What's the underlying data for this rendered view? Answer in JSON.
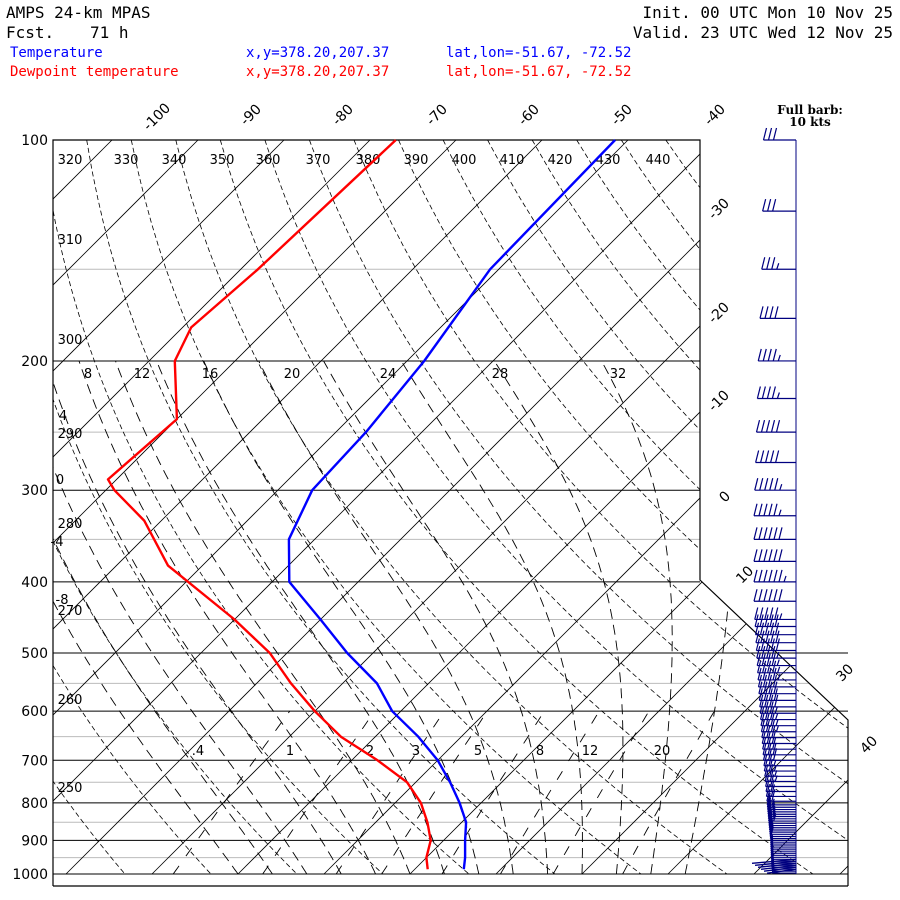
{
  "header": {
    "model": "AMPS 24-km MPAS",
    "fcst_label": "Fcst.",
    "fcst_value": "71 h",
    "init": "Init. 00 UTC Mon 10 Nov 25",
    "valid": "Valid. 23 UTC Wed 12 Nov 25"
  },
  "legend": {
    "temp_label": "Temperature",
    "dew_label": "Dewpoint temperature",
    "temp_xy": "x,y=378.20,207.37",
    "temp_latlon": "lat,lon=-51.67, -72.52",
    "dew_xy": "x,y=378.20,207.37",
    "dew_latlon": "lat,lon=-51.67, -72.52",
    "temp_color": "#0000ff",
    "dew_color": "#ff0000"
  },
  "barb_note": {
    "line1": "Full barb:",
    "line2": "10 kts"
  },
  "chart_data": {
    "type": "line",
    "chart_kind": "skew-T log-P diagram",
    "pressure_levels": [
      100,
      200,
      300,
      400,
      500,
      600,
      700,
      800,
      900,
      1000
    ],
    "pressure_tick_labels": [
      "100",
      "200",
      "300",
      "400",
      "500",
      "600",
      "700",
      "800",
      "900",
      "1000"
    ],
    "isotherm_labels": [
      "-100",
      "-90",
      "-80",
      "-70",
      "-60",
      "-50",
      "-40",
      "-30",
      "-20",
      "-10",
      "0",
      "10",
      "30",
      "40"
    ],
    "theta_labels": [
      "320",
      "330",
      "340",
      "350",
      "360",
      "370",
      "380",
      "390",
      "400",
      "410",
      "420",
      "430",
      "440",
      "310",
      "300",
      "290",
      "280",
      "270",
      "260",
      "250"
    ],
    "mixing_ratio_labels": [
      ".4",
      "1",
      "2",
      "3",
      "5",
      "8",
      "12",
      "20"
    ],
    "theta_e_labels": [
      "8",
      "12",
      "16",
      "20",
      "24",
      "28",
      "32"
    ],
    "lifted_labels": [
      "4",
      "0",
      "-4",
      "-8"
    ],
    "y_scale": "log pressure",
    "series": [
      {
        "name": "Temperature",
        "color": "#0000ff",
        "values": [
          [
            100,
            -61.5
          ],
          [
            150,
            -61
          ],
          [
            200,
            -58
          ],
          [
            250,
            -56.5
          ],
          [
            300,
            -56
          ],
          [
            350,
            -53
          ],
          [
            400,
            -48
          ],
          [
            450,
            -40
          ],
          [
            500,
            -33
          ],
          [
            550,
            -26
          ],
          [
            600,
            -21
          ],
          [
            650,
            -15
          ],
          [
            700,
            -10
          ],
          [
            750,
            -6
          ],
          [
            800,
            -2.5
          ],
          [
            850,
            0.5
          ],
          [
            900,
            2.5
          ],
          [
            950,
            4.5
          ],
          [
            985,
            5.7
          ]
        ]
      },
      {
        "name": "Dewpoint temperature",
        "color": "#ff0000",
        "values": [
          [
            100,
            -87
          ],
          [
            150,
            -88
          ],
          [
            180,
            -89
          ],
          [
            200,
            -87
          ],
          [
            240,
            -80
          ],
          [
            290,
            -81
          ],
          [
            300,
            -79
          ],
          [
            330,
            -72
          ],
          [
            380,
            -64
          ],
          [
            450,
            -50
          ],
          [
            500,
            -42
          ],
          [
            550,
            -36
          ],
          [
            600,
            -30
          ],
          [
            650,
            -24
          ],
          [
            700,
            -17
          ],
          [
            750,
            -11
          ],
          [
            800,
            -7
          ],
          [
            850,
            -4
          ],
          [
            900,
            -1.5
          ],
          [
            950,
            0
          ],
          [
            985,
            1.5
          ]
        ]
      }
    ],
    "wind_barbs": {
      "units": "kts",
      "profile": [
        [
          100,
          30
        ],
        [
          150,
          35
        ],
        [
          200,
          45
        ],
        [
          250,
          50
        ],
        [
          300,
          55
        ],
        [
          350,
          60
        ],
        [
          400,
          65
        ],
        [
          450,
          55
        ],
        [
          500,
          50
        ],
        [
          550,
          45
        ],
        [
          600,
          40
        ],
        [
          650,
          35
        ],
        [
          700,
          30
        ],
        [
          750,
          25
        ],
        [
          800,
          20
        ],
        [
          850,
          15
        ],
        [
          900,
          10
        ],
        [
          950,
          8
        ],
        [
          1000,
          5
        ]
      ]
    }
  }
}
